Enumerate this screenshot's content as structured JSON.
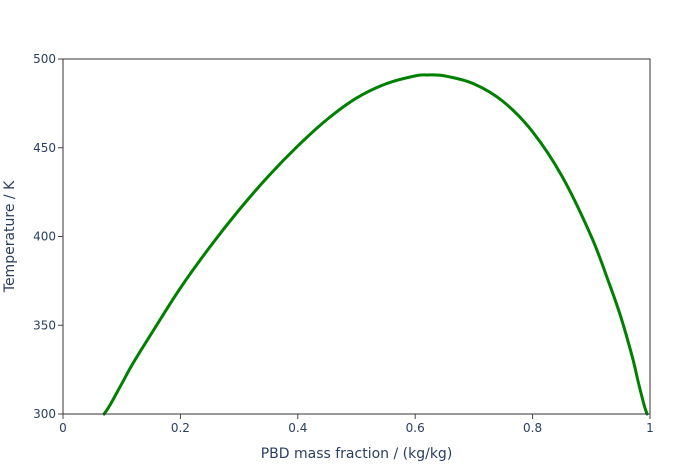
{
  "chart_data": {
    "type": "line",
    "title": "",
    "xlabel": "PBD mass fraction / (kg/kg)",
    "ylabel": "Temperature / K",
    "xlim": [
      0,
      1
    ],
    "ylim": [
      300,
      500
    ],
    "x_ticks": [
      0,
      0.2,
      0.4,
      0.6,
      0.8,
      1
    ],
    "x_tick_labels": [
      "0",
      "0.2",
      "0.4",
      "0.6",
      "0.8",
      "1"
    ],
    "y_ticks": [
      300,
      350,
      400,
      450,
      500
    ],
    "y_tick_labels": [
      "300",
      "350",
      "400",
      "450",
      "500"
    ],
    "grid": false,
    "legend": "none",
    "series": [
      {
        "color": "#008000",
        "x": [
          0.07,
          0.08,
          0.1,
          0.12,
          0.15,
          0.2,
          0.25,
          0.3,
          0.35,
          0.4,
          0.45,
          0.5,
          0.55,
          0.6,
          0.62,
          0.65,
          0.7,
          0.75,
          0.8,
          0.85,
          0.9,
          0.93,
          0.95,
          0.97,
          0.98,
          0.99,
          0.995
        ],
        "y": [
          300,
          305,
          317,
          329,
          345,
          371,
          394,
          415,
          434,
          451,
          466,
          478,
          486,
          490.5,
          491,
          490.5,
          486,
          476,
          459,
          434,
          400,
          374,
          355,
          332,
          318,
          305,
          300
        ]
      }
    ]
  }
}
